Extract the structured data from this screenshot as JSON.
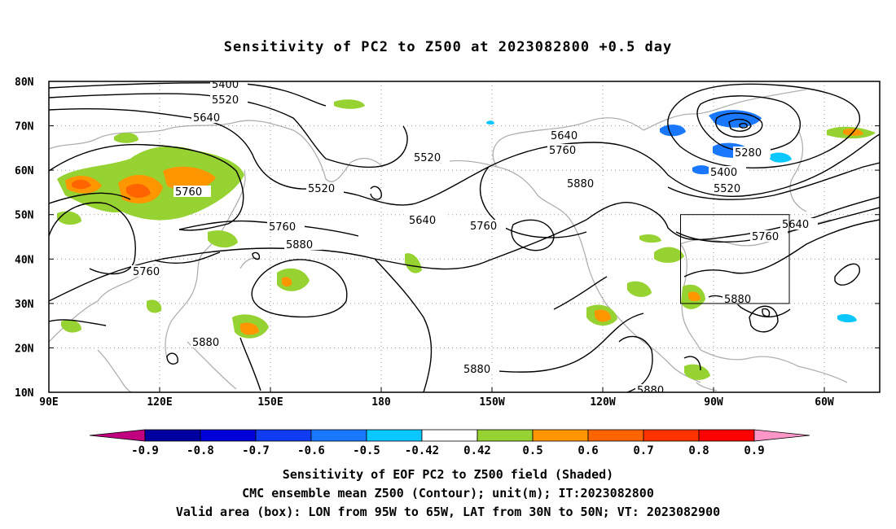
{
  "title": "Sensitivity of PC2 to Z500 at 2023082800 +0.5 day",
  "axes": {
    "lat_ticks": [
      "80N",
      "70N",
      "60N",
      "50N",
      "40N",
      "30N",
      "20N",
      "10N"
    ],
    "lon_ticks": [
      "90E",
      "120E",
      "150E",
      "180",
      "150W",
      "120W",
      "90W",
      "60W"
    ]
  },
  "contour_labels": [
    "5400",
    "5520",
    "5640",
    "5760",
    "5760",
    "5760",
    "5880",
    "5880",
    "5880",
    "5520",
    "5520",
    "5640",
    "5760",
    "5640",
    "5760",
    "5880",
    "5280",
    "5400",
    "5520",
    "5640",
    "5760",
    "5880",
    "5880"
  ],
  "colorbar": {
    "labels": [
      "-0.9",
      "-0.8",
      "-0.7",
      "-0.6",
      "-0.5",
      "-0.42",
      "0.42",
      "0.5",
      "0.6",
      "0.7",
      "0.8",
      "0.9"
    ],
    "colors": [
      "#c0007f",
      "#0000a0",
      "#0000d8",
      "#0f3cf0",
      "#1a78ff",
      "#0ac8ff",
      "#ffffff",
      "#96d232",
      "#ff9600",
      "#ff6400",
      "#ff3200",
      "#ff0000",
      "#ff96c8"
    ]
  },
  "valid_box": {
    "lon_west": "95W",
    "lon_east": "65W",
    "lat_south": "30N",
    "lat_north": "50N"
  },
  "captions": {
    "line1": "Sensitivity of EOF PC2 to Z500 field (Shaded)",
    "line2": "CMC ensemble mean Z500 (Contour); unit(m); IT:2023082800",
    "line3": "Valid area (box): LON from 95W to 65W, LAT from 30N to 50N; VT: 2023082900"
  }
}
